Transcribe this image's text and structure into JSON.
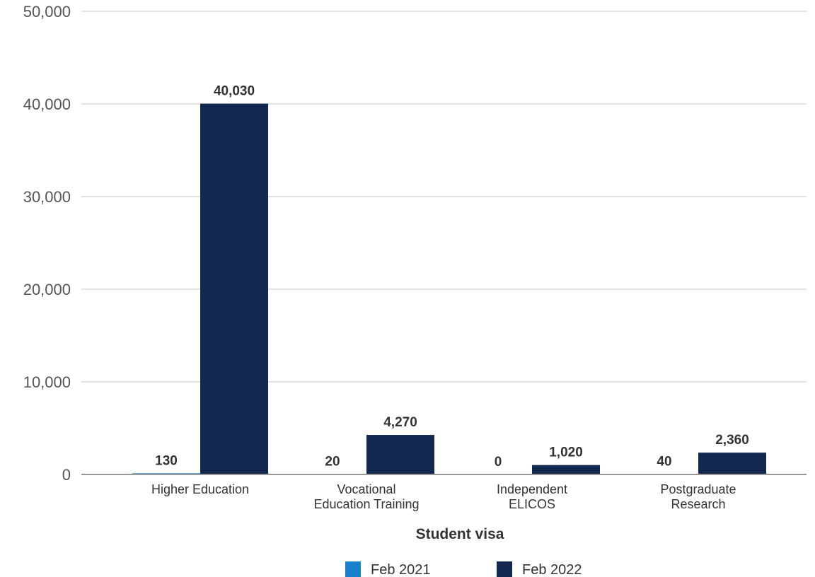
{
  "chart_data": {
    "type": "bar",
    "title": "",
    "xlabel": "Student visa",
    "ylabel": "",
    "ylim": [
      0,
      50000
    ],
    "yticks": [
      "0",
      "10,000",
      "20,000",
      "30,000",
      "40,000",
      "50,000"
    ],
    "ytick_values": [
      0,
      10000,
      20000,
      30000,
      40000,
      50000
    ],
    "categories": [
      [
        "Higher Education"
      ],
      [
        "Vocational",
        "Education Training"
      ],
      [
        "Independent",
        "ELICOS"
      ],
      [
        "Postgraduate",
        "Research"
      ]
    ],
    "series": [
      {
        "name": "Feb 2021",
        "color": "#1a7fc9",
        "values": [
          130,
          20,
          0,
          40
        ],
        "labels": [
          "130",
          "20",
          "0",
          "40"
        ]
      },
      {
        "name": "Feb 2022",
        "color": "#13284f",
        "values": [
          40030,
          4270,
          1020,
          2360
        ],
        "labels": [
          "40,030",
          "4,270",
          "1,020",
          "2,360"
        ]
      }
    ],
    "grid": true,
    "legend_position": "bottom"
  }
}
